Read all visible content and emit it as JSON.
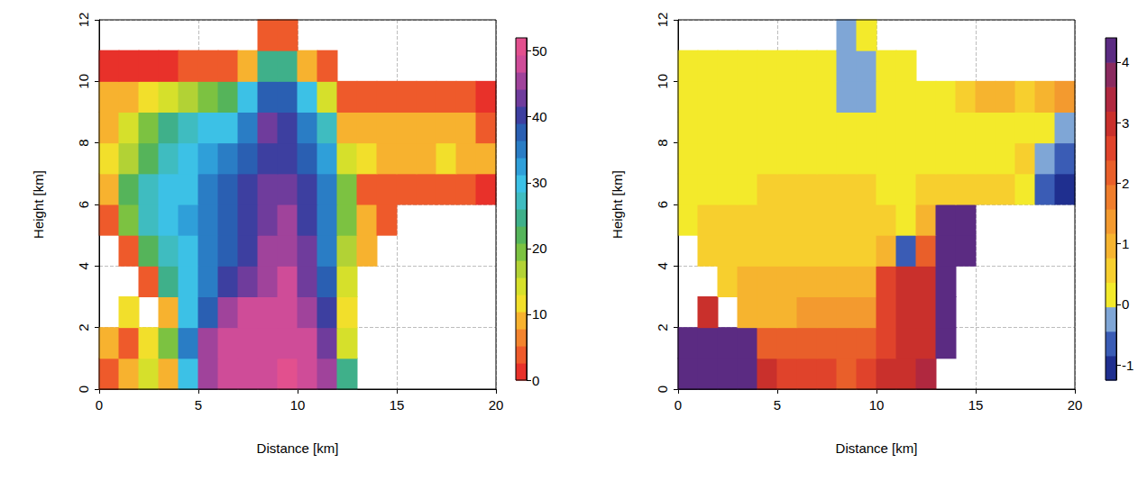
{
  "chart_data": [
    {
      "type": "heatmap",
      "x_label": "Distance [km]",
      "y_label": "Height [km]",
      "xlim": [
        0,
        20
      ],
      "xticks": [
        0,
        5,
        10,
        15,
        20
      ],
      "ylim": [
        0,
        12
      ],
      "yticks": [
        0,
        2,
        4,
        6,
        8,
        10,
        12
      ],
      "grid": true,
      "x": [
        0.5,
        1.5,
        2.5,
        3.5,
        4.5,
        5.5,
        6.5,
        7.5,
        8.5,
        9.5,
        10.5,
        11.5,
        12.5,
        13.5,
        14.5,
        15.5,
        16.5,
        17.5,
        18.5,
        19.5
      ],
      "y": [
        0.5,
        1.5,
        2.5,
        3.5,
        4.5,
        5.5,
        6.5,
        7.5,
        8.5,
        9.5,
        10.5,
        11.5
      ],
      "cells": [
        [
          5,
          10,
          15,
          8,
          30,
          45,
          48,
          48,
          49,
          50,
          48,
          45,
          25,
          null,
          null,
          null,
          null,
          null,
          null,
          null
        ],
        [
          8,
          5,
          12,
          20,
          35,
          45,
          48,
          48,
          48,
          49,
          47,
          42,
          15,
          null,
          null,
          null,
          null,
          null,
          null,
          null
        ],
        [
          null,
          12,
          null,
          10,
          30,
          38,
          45,
          47,
          47,
          48,
          46,
          40,
          12,
          null,
          null,
          null,
          null,
          null,
          null,
          null
        ],
        [
          null,
          null,
          5,
          25,
          30,
          35,
          40,
          42,
          46,
          47,
          44,
          38,
          15,
          null,
          null,
          null,
          null,
          null,
          null,
          null
        ],
        [
          null,
          5,
          22,
          28,
          30,
          35,
          38,
          40,
          45,
          46,
          42,
          36,
          18,
          8,
          null,
          null,
          null,
          null,
          null,
          null
        ],
        [
          5,
          20,
          28,
          30,
          32,
          35,
          38,
          40,
          44,
          45,
          40,
          35,
          20,
          10,
          5,
          null,
          null,
          null,
          null,
          null
        ],
        [
          10,
          22,
          28,
          30,
          30,
          35,
          38,
          40,
          42,
          43,
          40,
          35,
          20,
          5,
          5,
          5,
          4,
          3,
          3,
          2
        ],
        [
          12,
          18,
          22,
          28,
          30,
          32,
          35,
          38,
          40,
          40,
          38,
          32,
          15,
          12,
          10,
          10,
          10,
          12,
          10,
          8
        ],
        [
          10,
          15,
          20,
          25,
          28,
          30,
          30,
          35,
          42,
          40,
          35,
          28,
          10,
          8,
          8,
          8,
          8,
          8,
          8,
          5
        ],
        [
          8,
          10,
          12,
          15,
          18,
          20,
          22,
          30,
          38,
          38,
          30,
          15,
          3,
          3,
          3,
          3,
          3,
          3,
          3,
          2
        ],
        [
          2,
          2,
          2,
          2,
          3,
          3,
          3,
          10,
          25,
          25,
          10,
          3,
          null,
          null,
          null,
          null,
          null,
          null,
          null,
          null
        ],
        [
          null,
          null,
          null,
          null,
          null,
          null,
          null,
          null,
          3,
          3,
          null,
          null,
          null,
          null,
          null,
          null,
          null,
          null,
          null,
          null
        ]
      ],
      "colorbar": {
        "range": [
          0,
          52
        ],
        "ticks": [
          0,
          10,
          20,
          30,
          40,
          50
        ],
        "colors": [
          "#e8312a",
          "#ee5a2b",
          "#f3842e",
          "#f7b22f",
          "#f2df2b",
          "#d6e02b",
          "#b2d235",
          "#7cc241",
          "#55b45a",
          "#3fb08a",
          "#3fbcc0",
          "#3cc1e6",
          "#2f9fd9",
          "#2a7dc5",
          "#2a5fb2",
          "#3d3fa0",
          "#6f3c9c",
          "#a0439b",
          "#cf4c98",
          "#e2508e"
        ]
      }
    },
    {
      "type": "heatmap",
      "x_label": "Distance [km]",
      "y_label": "Height [km]",
      "xlim": [
        0,
        20
      ],
      "xticks": [
        0,
        5,
        10,
        15,
        20
      ],
      "ylim": [
        0,
        12
      ],
      "yticks": [
        0,
        2,
        4,
        6,
        8,
        10,
        12
      ],
      "grid": true,
      "x": [
        0.5,
        1.5,
        2.5,
        3.5,
        4.5,
        5.5,
        6.5,
        7.5,
        8.5,
        9.5,
        10.5,
        11.5,
        12.5,
        13.5,
        14.5,
        15.5,
        16.5,
        17.5,
        18.5,
        19.5
      ],
      "y": [
        0.5,
        1.5,
        2.5,
        3.5,
        4.5,
        5.5,
        6.5,
        7.5,
        8.5,
        9.5,
        10.5,
        11.5
      ],
      "cells": [
        [
          4.2,
          4.2,
          4.2,
          4.2,
          3,
          2.5,
          2.5,
          2.5,
          2,
          2.5,
          3,
          3,
          3.5,
          null,
          null,
          null,
          null,
          null,
          null,
          null
        ],
        [
          4.2,
          4.2,
          4.2,
          4.2,
          2,
          2,
          2,
          2,
          2,
          2,
          2.5,
          3,
          3,
          4.2,
          null,
          null,
          null,
          null,
          null,
          null
        ],
        [
          null,
          3,
          null,
          1,
          1,
          1,
          1.5,
          1.5,
          1.5,
          1.5,
          2.5,
          3,
          3,
          4.2,
          null,
          null,
          null,
          null,
          null,
          null
        ],
        [
          null,
          null,
          0.5,
          0.8,
          0.8,
          0.8,
          0.8,
          0.8,
          0.8,
          1,
          2.5,
          3,
          3,
          4.2,
          null,
          null,
          null,
          null,
          null,
          null
        ],
        [
          null,
          0.5,
          0.5,
          0.5,
          0.5,
          0.5,
          0.5,
          0.5,
          0.5,
          0.5,
          1,
          -0.5,
          2,
          4.2,
          4.2,
          null,
          null,
          null,
          null,
          null
        ],
        [
          0.3,
          0.5,
          0.5,
          0.5,
          0.5,
          0.5,
          0.5,
          0.5,
          0.5,
          0.5,
          0.5,
          0.3,
          1,
          4.2,
          4.2,
          null,
          null,
          null,
          null,
          null
        ],
        [
          0.3,
          0.3,
          0.3,
          0.3,
          0.4,
          0.4,
          0.4,
          0.4,
          0.4,
          0.4,
          0.3,
          0.3,
          0.5,
          0.5,
          0.5,
          0.5,
          0.5,
          0.3,
          -0.5,
          -1
        ],
        [
          0.2,
          0.2,
          0.2,
          0.2,
          0.2,
          0.2,
          0.2,
          0.2,
          0.2,
          0.2,
          0.2,
          0.2,
          0.2,
          0.2,
          0.2,
          0.2,
          0.2,
          0.5,
          -0.3,
          -0.5
        ],
        [
          0.2,
          0.2,
          0.2,
          0.2,
          0.2,
          0.2,
          0.2,
          0.2,
          0.2,
          0.2,
          0.2,
          0.2,
          0.2,
          0.2,
          0.2,
          0.2,
          0.2,
          0.2,
          0.2,
          -0.3
        ],
        [
          0.2,
          0.2,
          0.2,
          0.2,
          0.2,
          0.2,
          0.2,
          0.2,
          -0.3,
          -0.3,
          0.2,
          0.2,
          0.2,
          0.2,
          0.5,
          1,
          1,
          0.5,
          1,
          1.5
        ],
        [
          0.3,
          0.3,
          0.3,
          0.3,
          0.3,
          0.3,
          0.3,
          0.3,
          -0.3,
          -0.3,
          0.2,
          0.3,
          null,
          null,
          null,
          null,
          null,
          null,
          null,
          null
        ],
        [
          null,
          null,
          null,
          null,
          null,
          null,
          null,
          null,
          -0.3,
          0.2,
          null,
          null,
          null,
          null,
          null,
          null,
          null,
          null,
          null,
          null
        ]
      ],
      "colorbar": {
        "range": [
          -1.25,
          4.4
        ],
        "ticks": [
          -1,
          0,
          1,
          2,
          3,
          4
        ],
        "colors": [
          "#1f2f8f",
          "#3a5cb5",
          "#7fa6d6",
          "#f3ea2b",
          "#f7cf2e",
          "#f6b42f",
          "#f39a2f",
          "#ef7d2c",
          "#e95f2a",
          "#e0432b",
          "#c9302c",
          "#b0283f",
          "#8a2a5f",
          "#5b2b82"
        ]
      }
    }
  ]
}
